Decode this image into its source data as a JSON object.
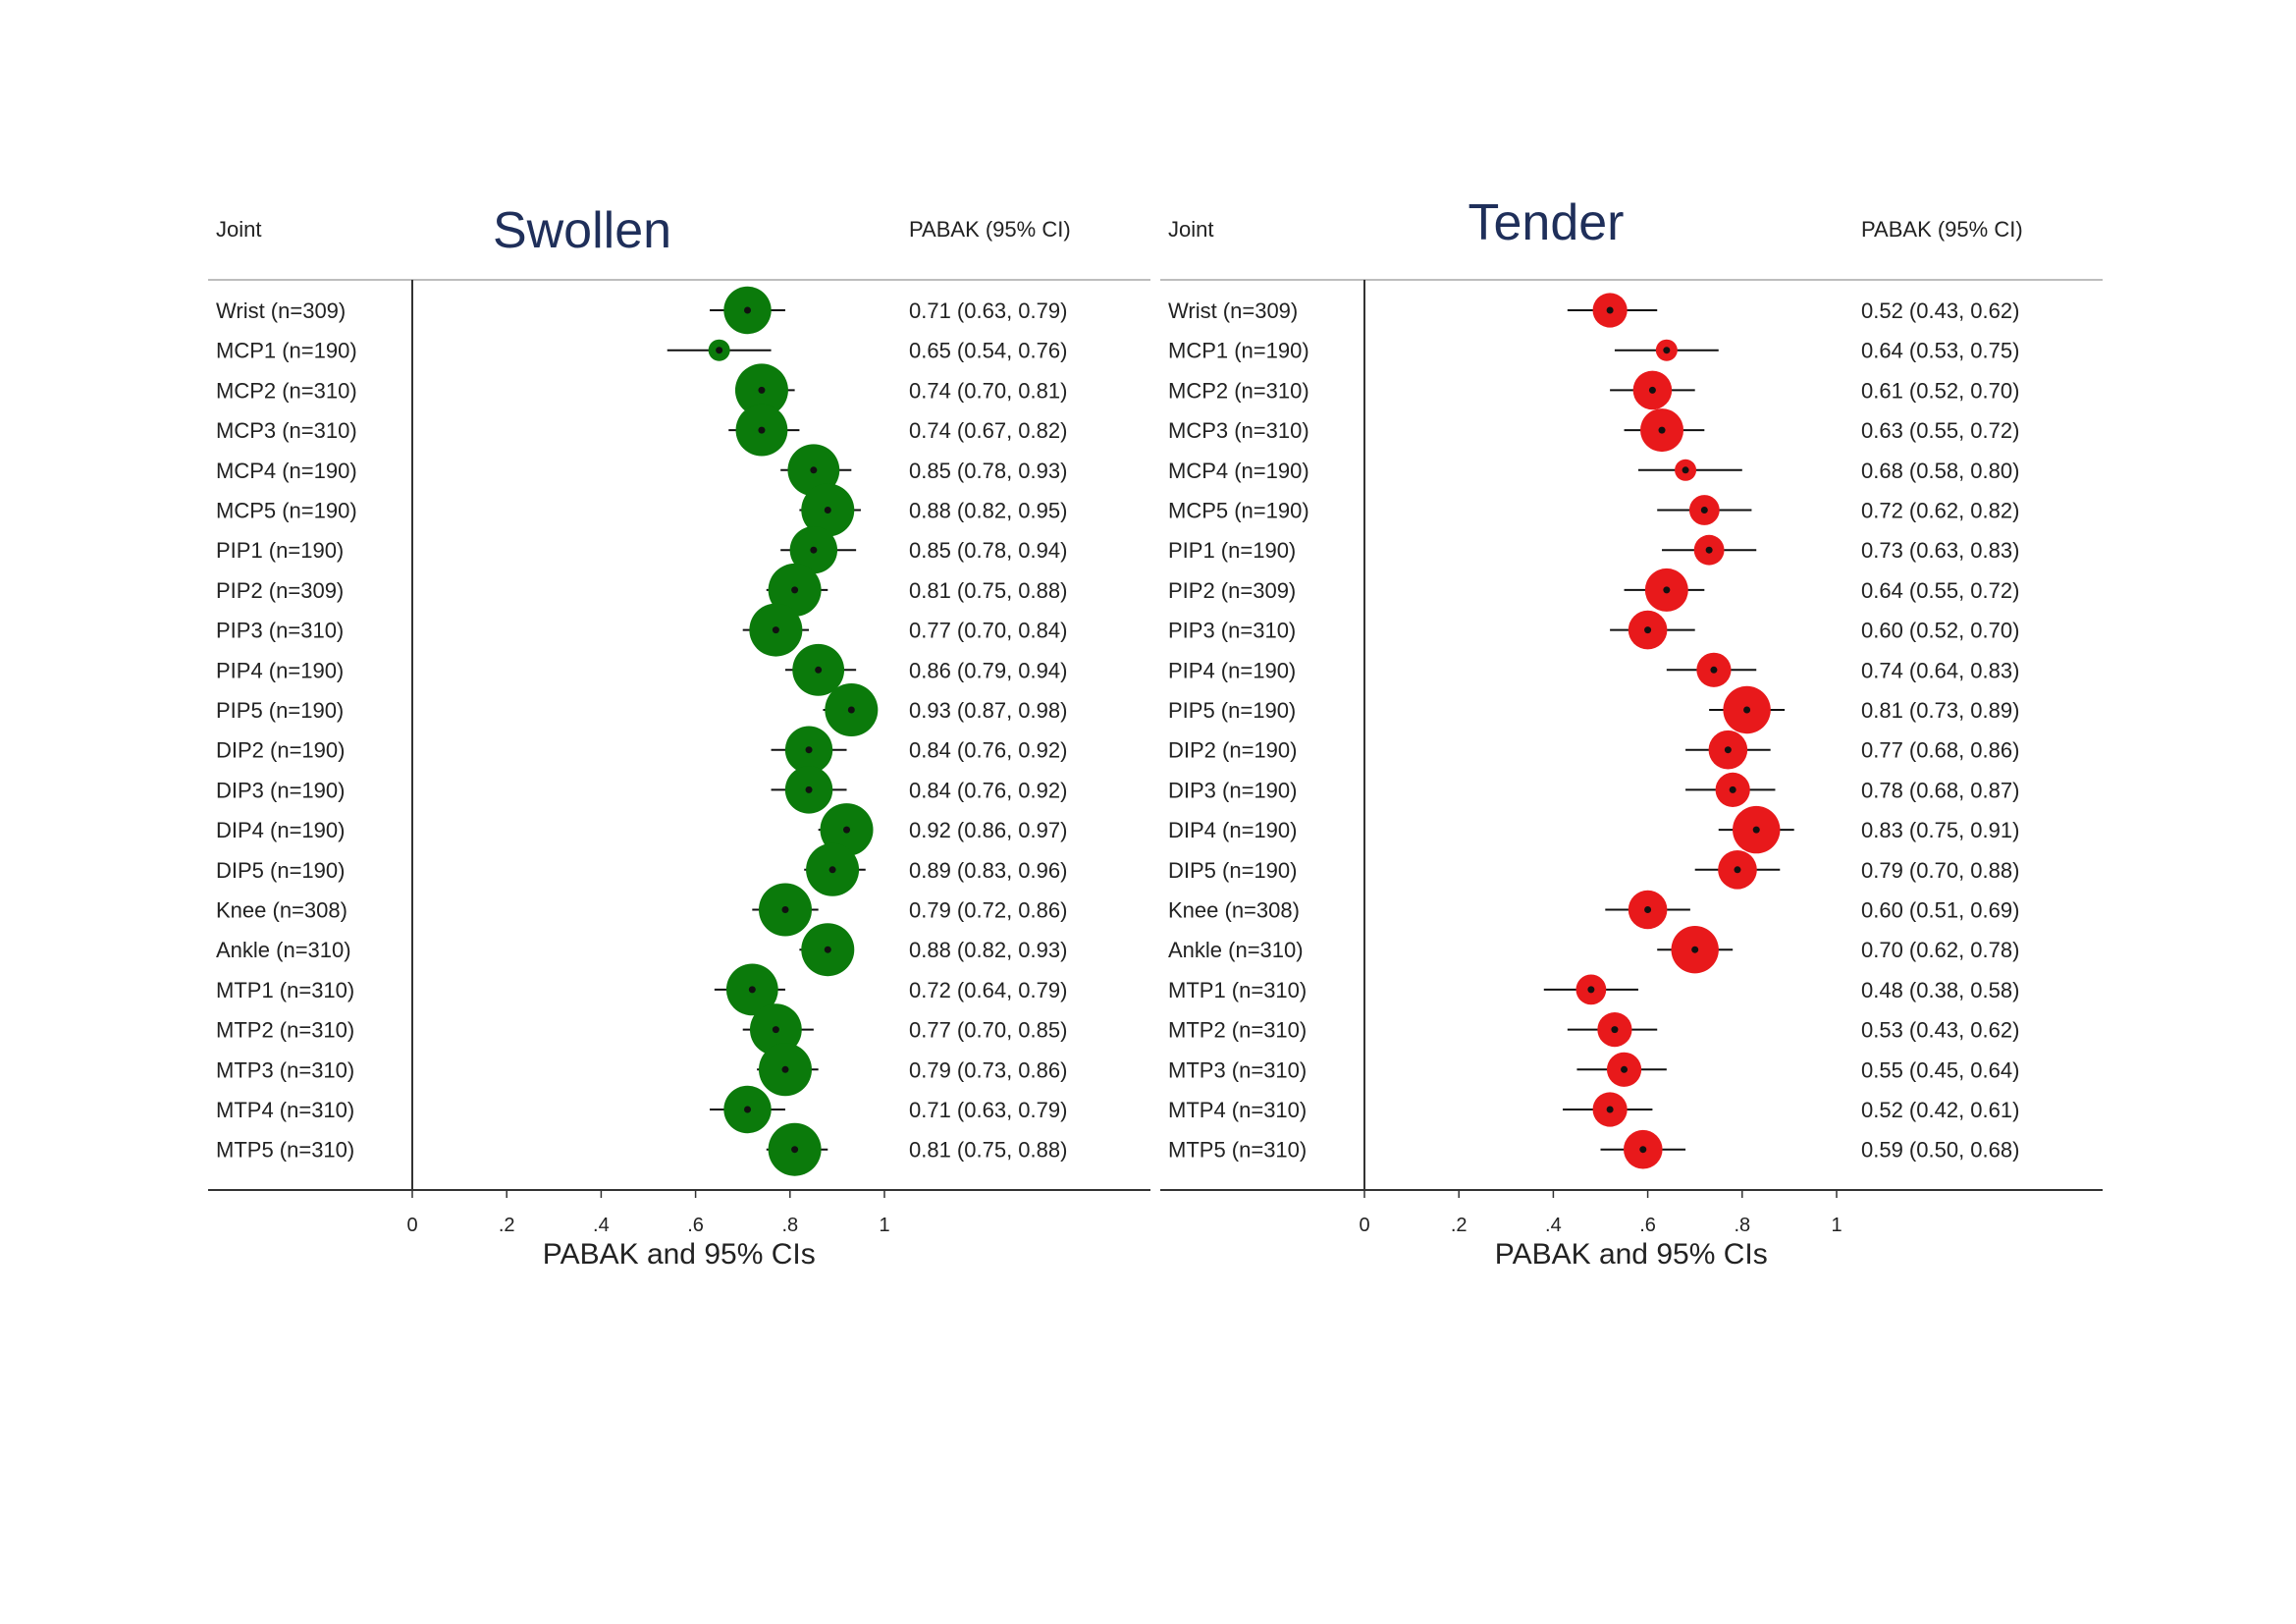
{
  "chart_data": [
    {
      "type": "forest",
      "title": "Swollen",
      "col_header_left": "Joint",
      "col_header_right": "PABAK (95% CI)",
      "xlabel": "PABAK and 95% CIs",
      "xlim": [
        0,
        1
      ],
      "xticks": [
        0,
        0.2,
        0.4,
        0.6,
        0.8,
        1
      ],
      "xtick_labels": [
        "0",
        ".2",
        ".4",
        ".6",
        ".8",
        "1"
      ],
      "marker_color": "#0b7a0b",
      "rows": [
        {
          "label": "Wrist (n=309)",
          "est": 0.71,
          "lo": 0.63,
          "hi": 0.79,
          "text": "0.71 (0.63, 0.79)"
        },
        {
          "label": "MCP1 (n=190)",
          "est": 0.65,
          "lo": 0.54,
          "hi": 0.76,
          "text": "0.65 (0.54, 0.76)"
        },
        {
          "label": "MCP2 (n=310)",
          "est": 0.74,
          "lo": 0.7,
          "hi": 0.81,
          "text": "0.74 (0.70, 0.81)"
        },
        {
          "label": "MCP3 (n=310)",
          "est": 0.74,
          "lo": 0.67,
          "hi": 0.82,
          "text": "0.74 (0.67, 0.82)"
        },
        {
          "label": "MCP4 (n=190)",
          "est": 0.85,
          "lo": 0.78,
          "hi": 0.93,
          "text": "0.85 (0.78, 0.93)"
        },
        {
          "label": "MCP5 (n=190)",
          "est": 0.88,
          "lo": 0.82,
          "hi": 0.95,
          "text": "0.88 (0.82, 0.95)"
        },
        {
          "label": "PIP1 (n=190)",
          "est": 0.85,
          "lo": 0.78,
          "hi": 0.94,
          "text": "0.85 (0.78, 0.94)"
        },
        {
          "label": "PIP2 (n=309)",
          "est": 0.81,
          "lo": 0.75,
          "hi": 0.88,
          "text": "0.81 (0.75, 0.88)"
        },
        {
          "label": "PIP3 (n=310)",
          "est": 0.77,
          "lo": 0.7,
          "hi": 0.84,
          "text": "0.77 (0.70, 0.84)"
        },
        {
          "label": "PIP4 (n=190)",
          "est": 0.86,
          "lo": 0.79,
          "hi": 0.94,
          "text": "0.86 (0.79, 0.94)"
        },
        {
          "label": "PIP5 (n=190)",
          "est": 0.93,
          "lo": 0.87,
          "hi": 0.98,
          "text": "0.93 (0.87, 0.98)"
        },
        {
          "label": "DIP2 (n=190)",
          "est": 0.84,
          "lo": 0.76,
          "hi": 0.92,
          "text": "0.84 (0.76, 0.92)"
        },
        {
          "label": "DIP3 (n=190)",
          "est": 0.84,
          "lo": 0.76,
          "hi": 0.92,
          "text": "0.84 (0.76, 0.92)"
        },
        {
          "label": "DIP4 (n=190)",
          "est": 0.92,
          "lo": 0.86,
          "hi": 0.97,
          "text": "0.92 (0.86, 0.97)"
        },
        {
          "label": "DIP5 (n=190)",
          "est": 0.89,
          "lo": 0.83,
          "hi": 0.96,
          "text": "0.89 (0.83, 0.96)"
        },
        {
          "label": "Knee (n=308)",
          "est": 0.79,
          "lo": 0.72,
          "hi": 0.86,
          "text": "0.79 (0.72, 0.86)"
        },
        {
          "label": "Ankle (n=310)",
          "est": 0.88,
          "lo": 0.82,
          "hi": 0.93,
          "text": "0.88 (0.82, 0.93)"
        },
        {
          "label": "MTP1 (n=310)",
          "est": 0.72,
          "lo": 0.64,
          "hi": 0.79,
          "text": "0.72 (0.64, 0.79)"
        },
        {
          "label": "MTP2 (n=310)",
          "est": 0.77,
          "lo": 0.7,
          "hi": 0.85,
          "text": "0.77 (0.70, 0.85)"
        },
        {
          "label": "MTP3 (n=310)",
          "est": 0.79,
          "lo": 0.73,
          "hi": 0.86,
          "text": "0.79 (0.73, 0.86)"
        },
        {
          "label": "MTP4 (n=310)",
          "est": 0.71,
          "lo": 0.63,
          "hi": 0.79,
          "text": "0.71 (0.63, 0.79)"
        },
        {
          "label": "MTP5 (n=310)",
          "est": 0.81,
          "lo": 0.75,
          "hi": 0.88,
          "text": "0.81 (0.75, 0.88)"
        }
      ]
    },
    {
      "type": "forest",
      "title": "Tender",
      "col_header_left": "Joint",
      "col_header_right": "PABAK (95% CI)",
      "xlabel": "PABAK and 95% CIs",
      "xlim": [
        0,
        1
      ],
      "xticks": [
        0,
        0.2,
        0.4,
        0.6,
        0.8,
        1
      ],
      "xtick_labels": [
        "0",
        ".2",
        ".4",
        ".6",
        ".8",
        "1"
      ],
      "marker_color": "#e8191b",
      "rows": [
        {
          "label": "Wrist (n=309)",
          "est": 0.52,
          "lo": 0.43,
          "hi": 0.62,
          "text": "0.52 (0.43, 0.62)"
        },
        {
          "label": "MCP1 (n=190)",
          "est": 0.64,
          "lo": 0.53,
          "hi": 0.75,
          "text": "0.64 (0.53, 0.75)"
        },
        {
          "label": "MCP2 (n=310)",
          "est": 0.61,
          "lo": 0.52,
          "hi": 0.7,
          "text": "0.61 (0.52, 0.70)"
        },
        {
          "label": "MCP3 (n=310)",
          "est": 0.63,
          "lo": 0.55,
          "hi": 0.72,
          "text": "0.63 (0.55, 0.72)"
        },
        {
          "label": "MCP4 (n=190)",
          "est": 0.68,
          "lo": 0.58,
          "hi": 0.8,
          "text": "0.68 (0.58, 0.80)"
        },
        {
          "label": "MCP5 (n=190)",
          "est": 0.72,
          "lo": 0.62,
          "hi": 0.82,
          "text": "0.72 (0.62, 0.82)"
        },
        {
          "label": "PIP1 (n=190)",
          "est": 0.73,
          "lo": 0.63,
          "hi": 0.83,
          "text": "0.73 (0.63, 0.83)"
        },
        {
          "label": "PIP2 (n=309)",
          "est": 0.64,
          "lo": 0.55,
          "hi": 0.72,
          "text": "0.64 (0.55, 0.72)"
        },
        {
          "label": "PIP3 (n=310)",
          "est": 0.6,
          "lo": 0.52,
          "hi": 0.7,
          "text": "0.60 (0.52, 0.70)"
        },
        {
          "label": "PIP4 (n=190)",
          "est": 0.74,
          "lo": 0.64,
          "hi": 0.83,
          "text": "0.74 (0.64, 0.83)"
        },
        {
          "label": "PIP5 (n=190)",
          "est": 0.81,
          "lo": 0.73,
          "hi": 0.89,
          "text": "0.81 (0.73, 0.89)"
        },
        {
          "label": "DIP2 (n=190)",
          "est": 0.77,
          "lo": 0.68,
          "hi": 0.86,
          "text": "0.77 (0.68, 0.86)"
        },
        {
          "label": "DIP3 (n=190)",
          "est": 0.78,
          "lo": 0.68,
          "hi": 0.87,
          "text": "0.78 (0.68, 0.87)"
        },
        {
          "label": "DIP4 (n=190)",
          "est": 0.83,
          "lo": 0.75,
          "hi": 0.91,
          "text": "0.83 (0.75, 0.91)"
        },
        {
          "label": "DIP5 (n=190)",
          "est": 0.79,
          "lo": 0.7,
          "hi": 0.88,
          "text": "0.79 (0.70, 0.88)"
        },
        {
          "label": "Knee (n=308)",
          "est": 0.6,
          "lo": 0.51,
          "hi": 0.69,
          "text": "0.60 (0.51, 0.69)"
        },
        {
          "label": "Ankle (n=310)",
          "est": 0.7,
          "lo": 0.62,
          "hi": 0.78,
          "text": "0.70 (0.62, 0.78)"
        },
        {
          "label": "MTP1 (n=310)",
          "est": 0.48,
          "lo": 0.38,
          "hi": 0.58,
          "text": "0.48 (0.38, 0.58)"
        },
        {
          "label": "MTP2 (n=310)",
          "est": 0.53,
          "lo": 0.43,
          "hi": 0.62,
          "text": "0.53 (0.43, 0.62)"
        },
        {
          "label": "MTP3 (n=310)",
          "est": 0.55,
          "lo": 0.45,
          "hi": 0.64,
          "text": "0.55 (0.45, 0.64)"
        },
        {
          "label": "MTP4 (n=310)",
          "est": 0.52,
          "lo": 0.42,
          "hi": 0.61,
          "text": "0.52 (0.42, 0.61)"
        },
        {
          "label": "MTP5 (n=310)",
          "est": 0.59,
          "lo": 0.5,
          "hi": 0.68,
          "text": "0.59 (0.50, 0.68)"
        }
      ]
    }
  ]
}
